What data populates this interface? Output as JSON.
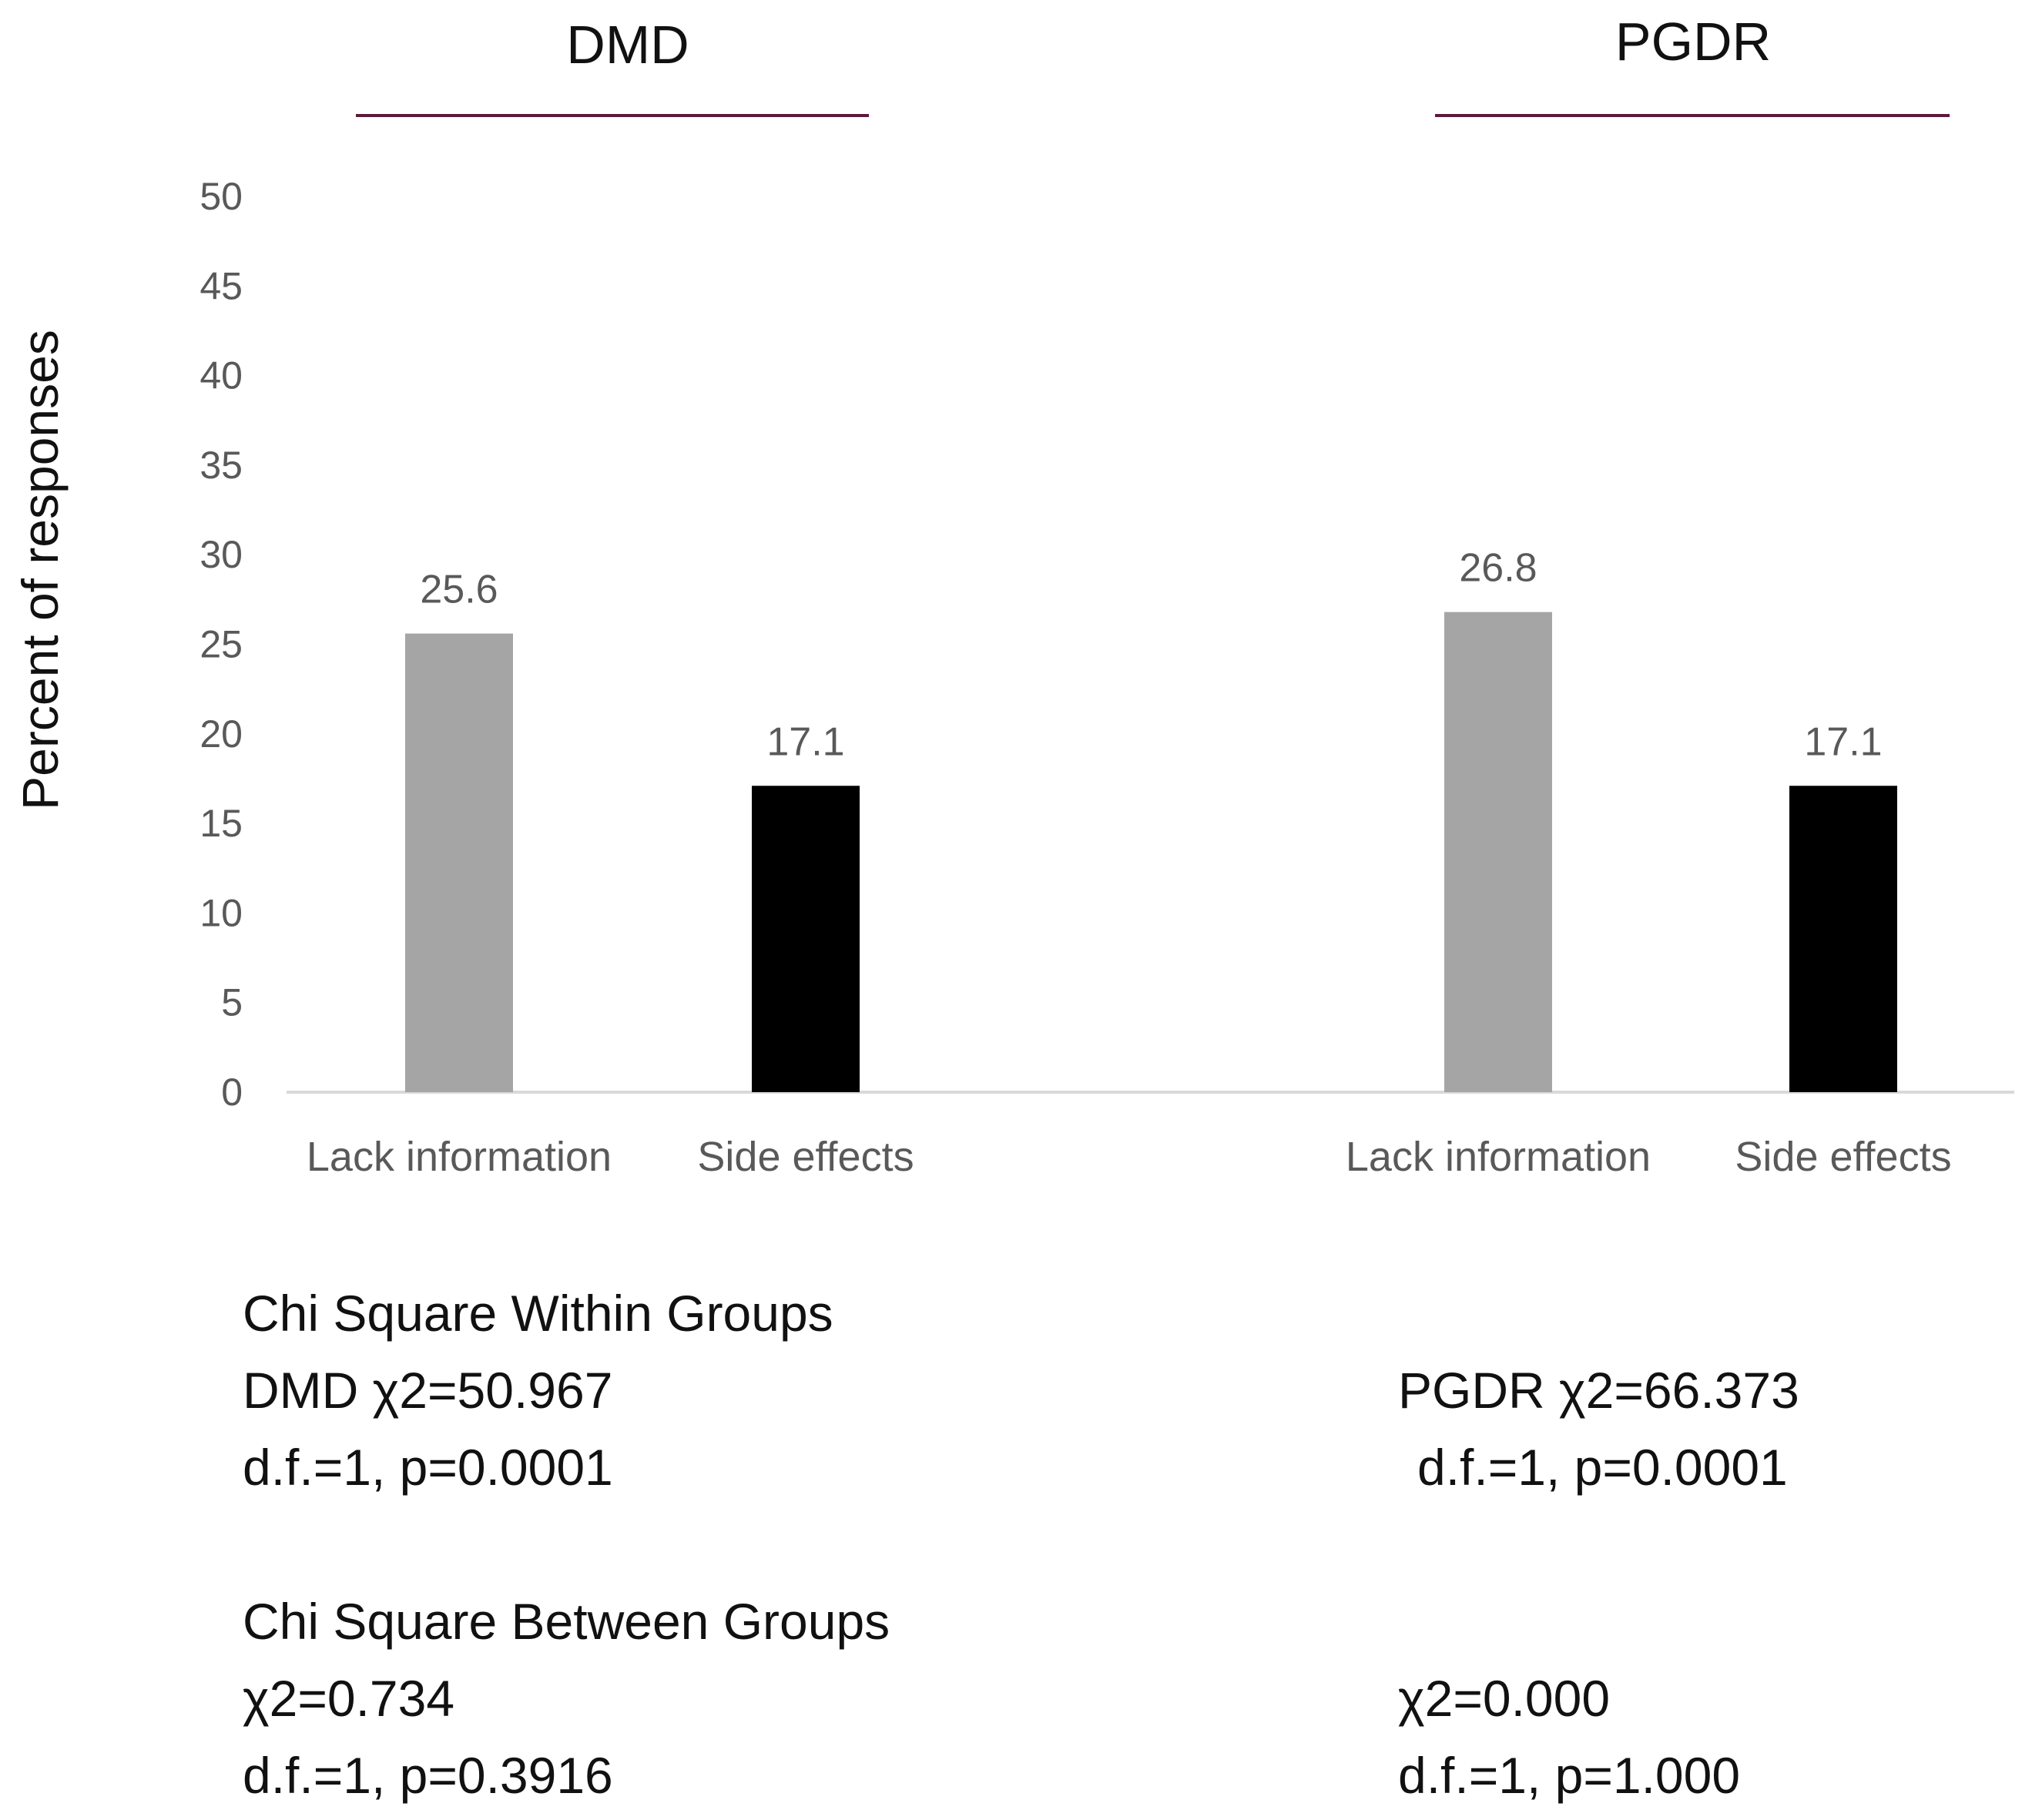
{
  "chart_data": {
    "type": "bar",
    "ylabel": "Percent of responses",
    "ylim": [
      0,
      50
    ],
    "yticks": [
      0,
      5,
      10,
      15,
      20,
      25,
      30,
      35,
      40,
      45,
      50
    ],
    "groups": [
      {
        "name": "DMD",
        "categories": [
          "Lack information",
          "Side effects"
        ],
        "values": [
          25.6,
          17.1
        ],
        "labels": [
          "25.6",
          "17.1"
        ],
        "colors": [
          "#a5a5a5",
          "#000000"
        ]
      },
      {
        "name": "PGDR",
        "categories": [
          "Lack information",
          "Side effects"
        ],
        "values": [
          26.8,
          17.1
        ],
        "labels": [
          "26.8",
          "17.1"
        ],
        "colors": [
          "#a5a5a5",
          "#000000"
        ]
      }
    ],
    "title_rule_color": "#5c1a3c"
  },
  "stats": {
    "within_title": "Chi Square Within Groups",
    "dmd_within": "DMD χ2=50.967",
    "dmd_within_df": "d.f.=1, p=0.0001",
    "pgdr_within": "PGDR χ2=66.373",
    "pgdr_within_df": "d.f.=1, p=0.0001",
    "between_title": "Chi Square Between Groups",
    "dmd_between": "χ2=0.734",
    "dmd_between_df": "d.f.=1, p=0.3916",
    "pgdr_between": "χ2=0.000",
    "pgdr_between_df": "d.f.=1, p=1.000"
  }
}
